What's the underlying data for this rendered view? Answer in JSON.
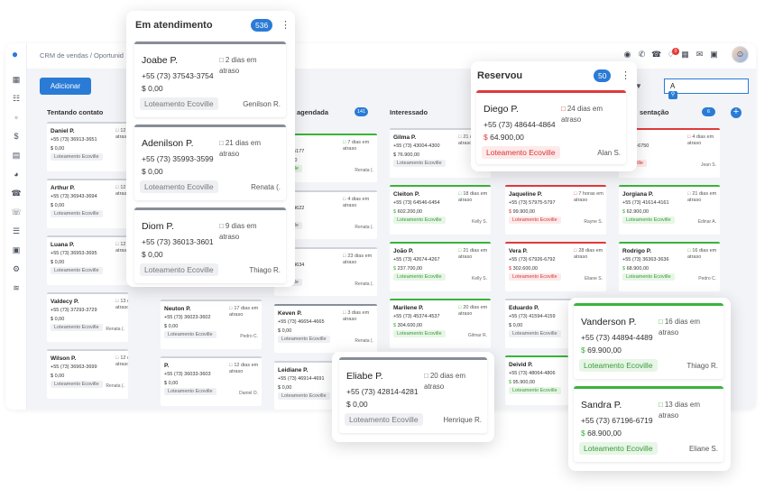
{
  "breadcrumb": "CRM de vendas / Oportunid",
  "add_label": "Adicionar",
  "search_value": "A",
  "notification_count": "0",
  "columns": [
    {
      "title": "Tentando contato",
      "count": ""
    },
    {
      "title": "agendada",
      "count": "141"
    },
    {
      "title": "Interessado",
      "count": ""
    },
    {
      "title": "sentação",
      "count": "6"
    }
  ],
  "bg_cards": [
    {
      "name": "Daniel P.",
      "phone": "+55 (73) 36913-3651",
      "price": "0,00",
      "delay": "12 dias em atraso",
      "tag": "Loteamento Ecoville",
      "owner": "",
      "status": "gray"
    },
    {
      "name": "Arthur P.",
      "phone": "+55 (73) 36943-3694",
      "price": "0,00",
      "delay": "12 dias em atraso",
      "tag": "Loteamento Ecoville",
      "owner": "",
      "status": "gray"
    },
    {
      "name": "Luana P.",
      "phone": "+55 (73) 36953-3695",
      "price": "0,00",
      "delay": "12 dias em atraso",
      "tag": "Loteamento Ecoville",
      "owner": "",
      "status": "gray"
    },
    {
      "name": "Valdecy P.",
      "phone": "+55 (73) 37293-3729",
      "price": "0,00",
      "delay": "13 dias em atraso",
      "tag": "Loteamento Ecoville",
      "owner": "Renata (.",
      "status": "gray"
    },
    {
      "name": "Wilson P.",
      "phone": "+55 (73) 36963-3699",
      "price": "0,00",
      "delay": "12 dias em atraso",
      "tag": "Loteamento Ecoville",
      "owner": "Renata (.",
      "status": "gray"
    },
    {
      "name": "Neuton P.",
      "phone": "+55 (73) 36023-3602",
      "price": "0,00",
      "delay": "17 dias em atraso",
      "tag": "Loteamento Ecoville",
      "owner": "Pedro C.",
      "status": "gray"
    },
    {
      "name": "P.",
      "phone": "+55 (73) 36033-3603",
      "price": "0,00",
      "delay": "12 dias em atraso",
      "tag": "Loteamento Ecoville",
      "owner": "Daniel O.",
      "status": "gray"
    },
    {
      "name": "P.",
      "phone": "51775-5177",
      "price": "800,00",
      "delay": "7 dias em atraso",
      "tag": "Ecoville",
      "owner": "Renata (.",
      "status": "green"
    },
    {
      "name": "",
      "phone": "46224-4622",
      "price": "0,00",
      "delay": "4 dias em atraso",
      "tag": "Ecoville",
      "owner": "Renata (.",
      "status": "gray"
    },
    {
      "name": "avo P.",
      "phone": "46344-4634",
      "price": "0,00",
      "delay": "23 dias em atraso",
      "tag": "Ecoville",
      "owner": "Renata (.",
      "status": "gray"
    },
    {
      "name": "Keven P.",
      "phone": "+55 (73) 46654-4665",
      "price": "0,00",
      "delay": "3 dias em atraso",
      "tag": "Loteamento Ecoville",
      "owner": "Renata (.",
      "status": "dark"
    },
    {
      "name": "Leidiane P.",
      "phone": "+55 (73) 46914-4691",
      "price": "0,00",
      "delay": "",
      "tag": "Loteamento Ecoville",
      "owner": "",
      "status": "gray"
    },
    {
      "name": "Gilma P.",
      "phone": "+55 (73) 43004-4300",
      "price": "76.900,00",
      "delay": "21 dias em atraso",
      "tag": "Loteamento Ecoville",
      "owner": "",
      "status": "gray"
    },
    {
      "name": "Cleiton P.",
      "phone": "+55 (73) 64546-6454",
      "price": "602.200,00",
      "delay": "18 dias em atraso",
      "tag": "Loteamento Ecoville",
      "owner": "Kelly S.",
      "status": "green"
    },
    {
      "name": "João P.",
      "phone": "+55 (73) 42674-4267",
      "price": "237.700,00",
      "delay": "21 dias em atraso",
      "tag": "Loteamento Ecoville",
      "owner": "Kelly S.",
      "status": "green"
    },
    {
      "name": "Marilene P.",
      "phone": "+55 (73) 45374-4537",
      "price": "304.600,00",
      "delay": "20 dias em atraso",
      "tag": "Loteamento Ecoville",
      "owner": "Gilmar R.",
      "status": "green"
    },
    {
      "name": "Jaqueline P.",
      "phone": "+55 (73) 57975-5797",
      "price": "99.900,00",
      "delay": "7 horas em atraso",
      "tag": "Loteamento Ecoville",
      "owner": "Rayne S.",
      "status": "red"
    },
    {
      "name": "Vera P.",
      "phone": "+55 (73) 67926-6792",
      "price": "302.600,00",
      "delay": "28 dias em atraso",
      "tag": "Loteamento Ecoville",
      "owner": "Eliane S.",
      "status": "red"
    },
    {
      "name": "Eduardo P.",
      "phone": "+55 (73) 41594-4159",
      "price": "0,00",
      "delay": "",
      "tag": "Loteamento Ecoville",
      "owner": "",
      "status": "gray"
    },
    {
      "name": "Deivid P.",
      "phone": "+55 (73) 48064-4806",
      "price": "95.900,00",
      "delay": "",
      "tag": "Loteamento Ecoville",
      "owner": "",
      "status": "green"
    },
    {
      "name": "P.",
      "phone": "67506-6750",
      "price": "",
      "delay": "4 dias em atraso",
      "tag": "Ecoville",
      "owner": "Jean S.",
      "status": "red"
    },
    {
      "name": "Jorgiana P.",
      "phone": "+55 (73) 41614-4161",
      "price": "62.900,00",
      "delay": "21 dias em atraso",
      "tag": "Loteamento Ecoville",
      "owner": "Edinar A.",
      "status": "green"
    },
    {
      "name": "Rodrigo P.",
      "phone": "+55 (73) 36363-3636",
      "price": "68.900,00",
      "delay": "16 dias em atraso",
      "tag": "Loteamento Ecoville",
      "owner": "Pedro C.",
      "status": "green"
    }
  ],
  "popup_atendimento": {
    "title": "Em atendimento",
    "count": "536",
    "cards": [
      {
        "name": "Joabe P.",
        "phone": "+55 (73) 37543-3754",
        "price": "0,00",
        "delay": "2 dias em atraso",
        "tag": "Loteamento Ecoville",
        "owner": "Genilson R."
      },
      {
        "name": "Adenilson P.",
        "phone": "+55 (73) 35993-3599",
        "price": "0,00",
        "delay": "21 dias em atraso",
        "tag": "Loteamento Ecoville",
        "owner": "Renata (."
      },
      {
        "name": "Diom P.",
        "phone": "+55 (73) 36013-3601",
        "price": "0,00",
        "delay": "9 dias em atraso",
        "tag": "Loteamento Ecoville",
        "owner": "Thiago R."
      }
    ]
  },
  "popup_reservou": {
    "title": "Reservou",
    "count": "50",
    "card": {
      "name": "Diego P.",
      "phone": "+55 (73) 48644-4864",
      "price": "64.900,00",
      "delay": "24 dias em atraso",
      "tag": "Loteamento Ecoville",
      "owner": "Alan S."
    }
  },
  "popup_eliabe": {
    "name": "Eliabe P.",
    "phone": "+55 (73) 42814-4281",
    "price": "0,00",
    "delay": "20 dias em atraso",
    "tag": "Loteamento Ecoville",
    "owner": "Henrique R."
  },
  "popup_green": {
    "cards": [
      {
        "name": "Vanderson P.",
        "phone": "+55 (73) 44894-4489",
        "price": "69.900,00",
        "delay": "16 dias em atraso",
        "tag": "Loteamento Ecoville",
        "owner": "Thiago R."
      },
      {
        "name": "Sandra P.",
        "phone": "+55 (73) 67196-6719",
        "price": "68.900,00",
        "delay": "13 dias em atraso",
        "tag": "Loteamento Ecoville",
        "owner": "Eliane S."
      }
    ]
  },
  "icons": {
    "accent": "#2a7bd6",
    "green": "#3ab33a",
    "red": "#e03a3a"
  }
}
